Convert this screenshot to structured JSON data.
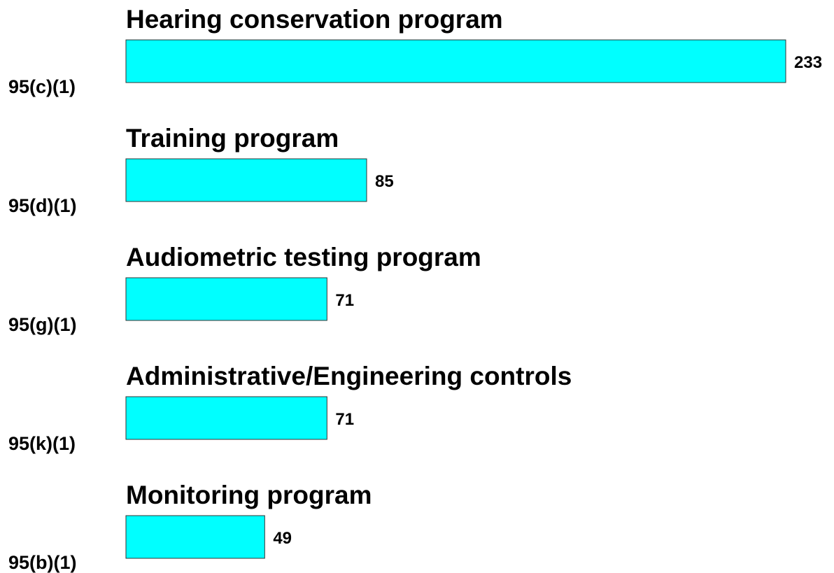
{
  "chart_data": {
    "type": "bar",
    "categories": [
      "95(c)(1)",
      "95(d)(1)",
      "95(g)(1)",
      "95(k)(1)",
      "95(b)(1)"
    ],
    "descriptions": [
      "Hearing conservation program",
      "Training program",
      "Audiometric testing program",
      "Administrative/Engineering controls",
      "Monitoring program"
    ],
    "values": [
      233,
      85,
      71,
      71,
      49
    ],
    "color": "#00ffff"
  }
}
